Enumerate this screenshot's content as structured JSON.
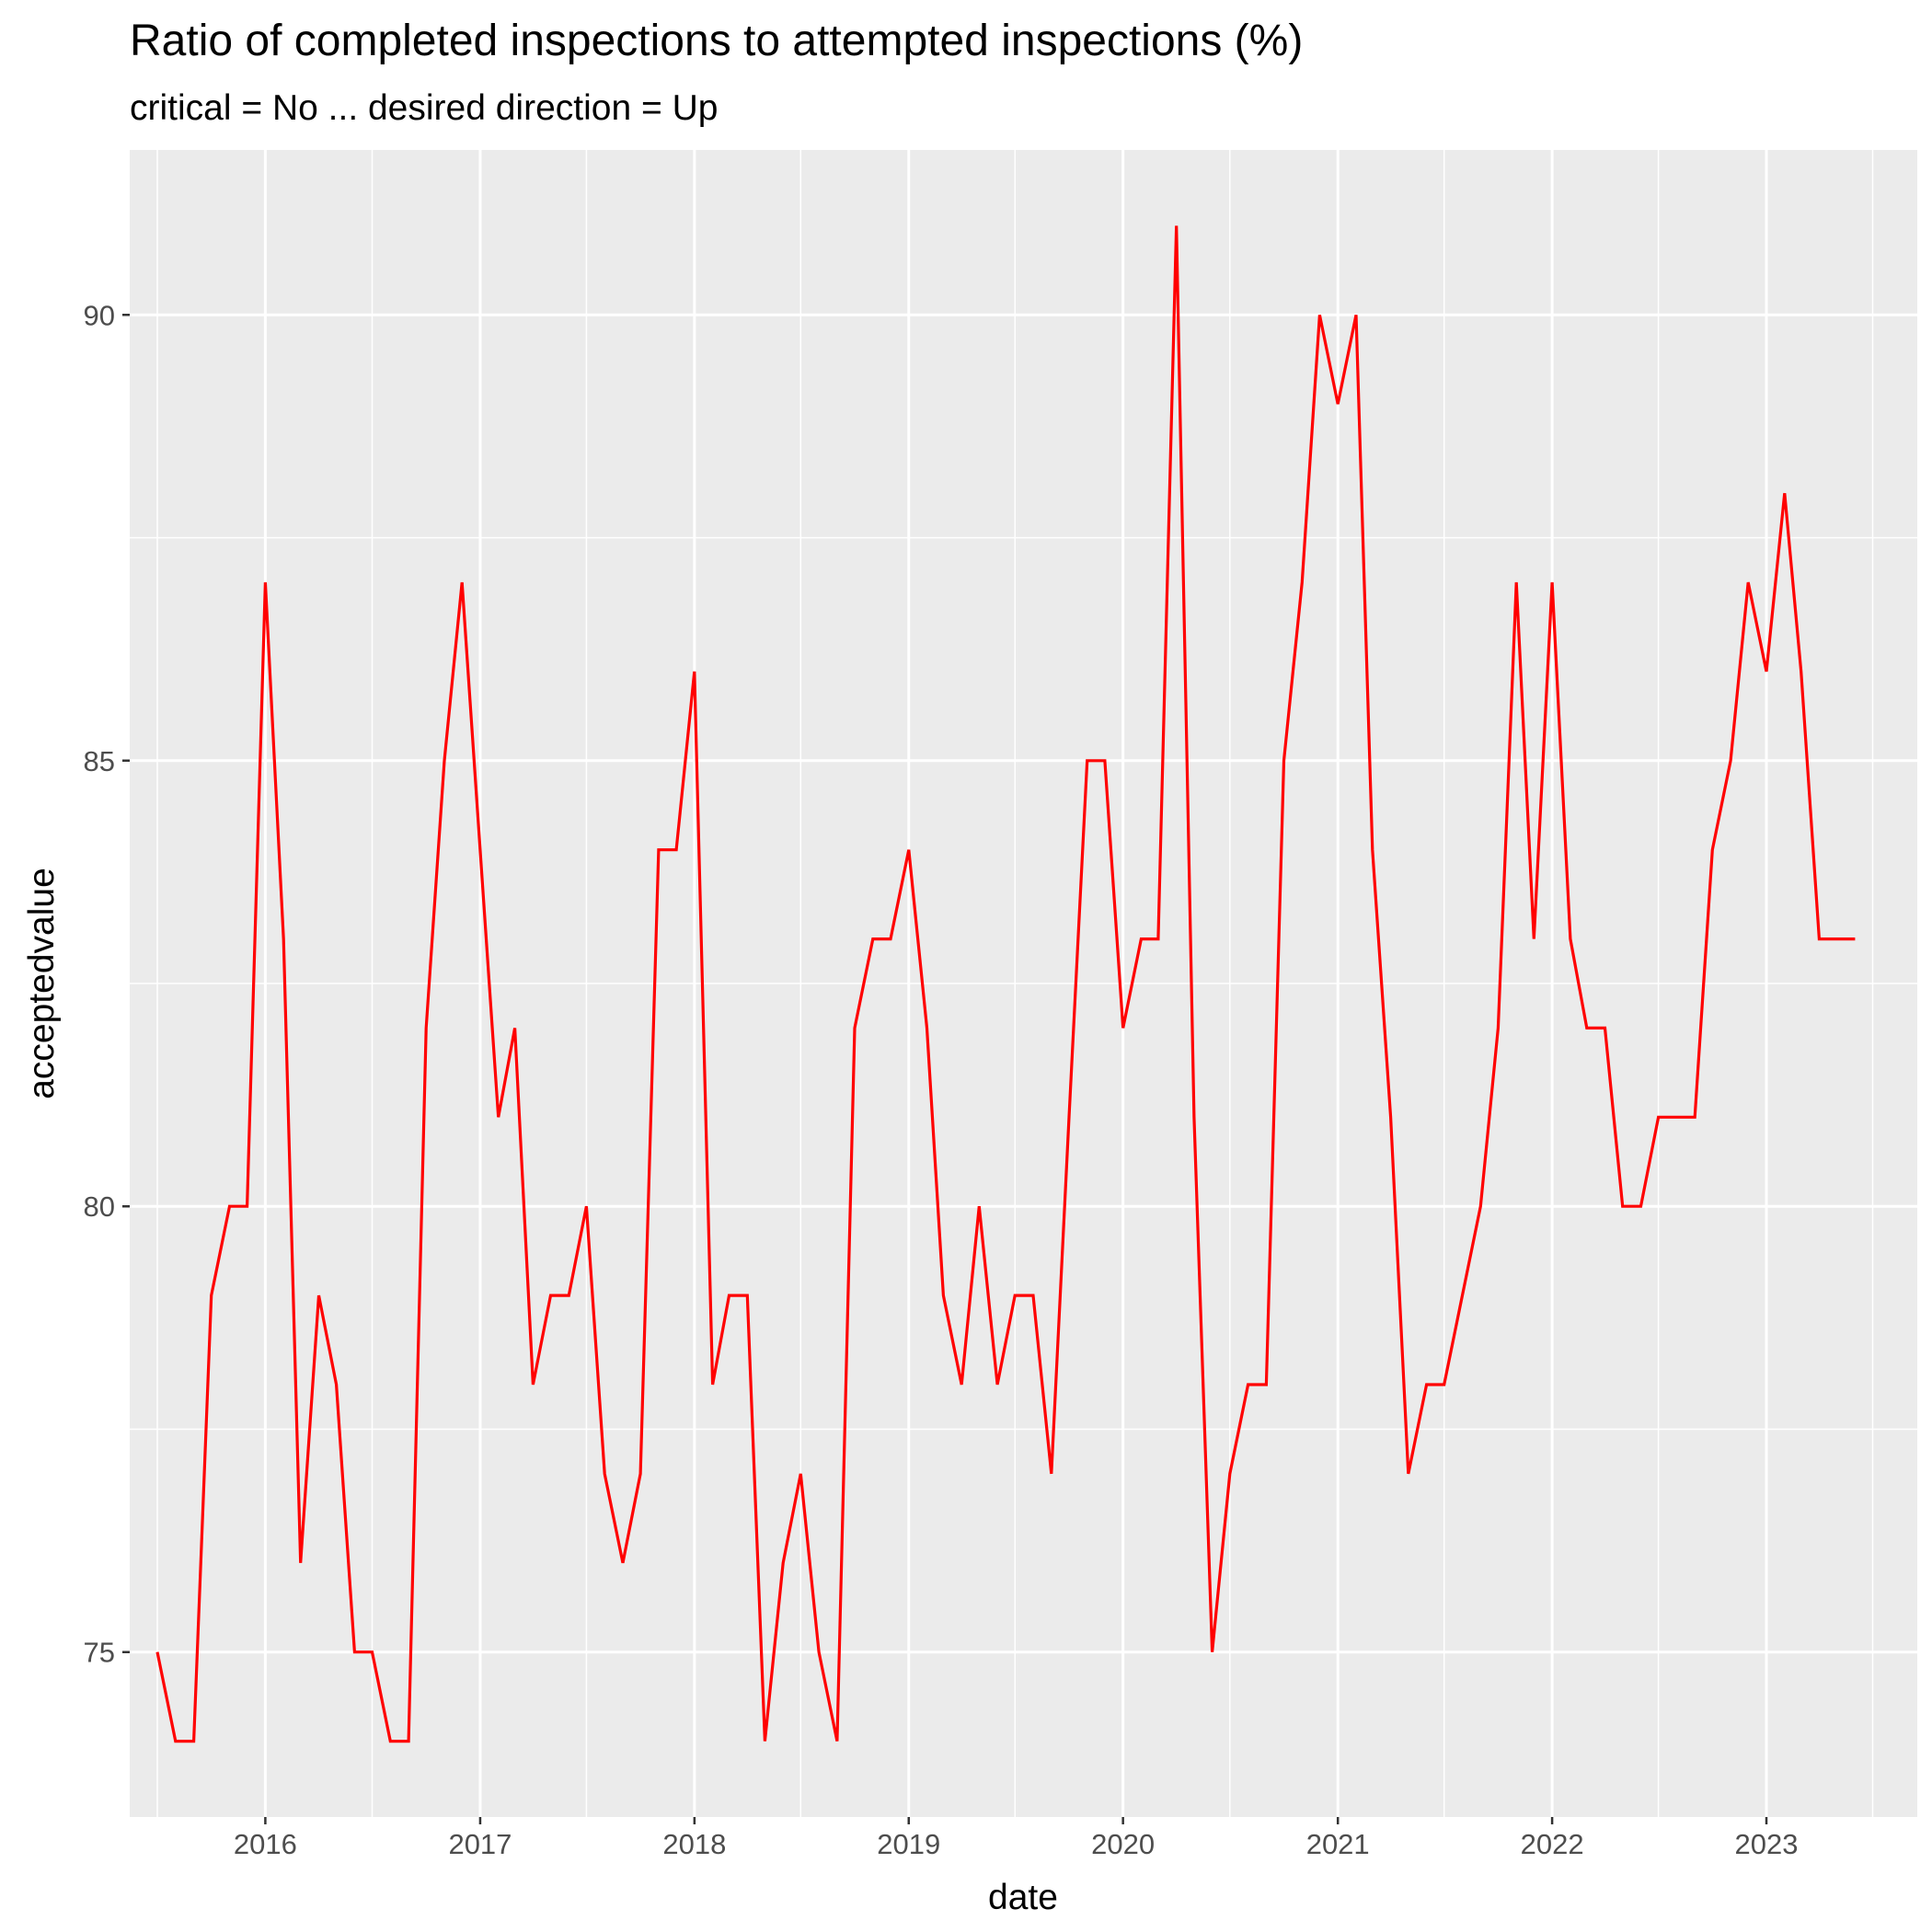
{
  "chart_data": {
    "type": "line",
    "title": "Ratio of completed inspections to attempted inspections (%)",
    "subtitle": "critical = No ... desired direction = Up",
    "xlabel": "date",
    "ylabel": "acceptedvalue",
    "x_tick_labels": [
      "2016",
      "2017",
      "2018",
      "2019",
      "2020",
      "2021",
      "2022",
      "2023"
    ],
    "y_tick_labels": [
      "75",
      "80",
      "85",
      "90"
    ],
    "y_ticks": [
      75,
      80,
      85,
      90
    ],
    "xlim": [
      "2015-05-15",
      "2023-09-15"
    ],
    "ylim": [
      73.15,
      91.85
    ],
    "grid": true,
    "series": [
      {
        "color": "#ff0000",
        "x": [
          "2015-07",
          "2015-08",
          "2015-09",
          "2015-10",
          "2015-11",
          "2015-12",
          "2016-01",
          "2016-02",
          "2016-03",
          "2016-04",
          "2016-05",
          "2016-06",
          "2016-07",
          "2016-08",
          "2016-09",
          "2016-10",
          "2016-11",
          "2016-12",
          "2017-01",
          "2017-02",
          "2017-03",
          "2017-04",
          "2017-05",
          "2017-06",
          "2017-07",
          "2017-08",
          "2017-09",
          "2017-10",
          "2017-11",
          "2017-12",
          "2018-01",
          "2018-02",
          "2018-03",
          "2018-04",
          "2018-05",
          "2018-06",
          "2018-07",
          "2018-08",
          "2018-09",
          "2018-10",
          "2018-11",
          "2018-12",
          "2019-01",
          "2019-02",
          "2019-03",
          "2019-04",
          "2019-05",
          "2019-06",
          "2019-07",
          "2019-08",
          "2019-09",
          "2019-10",
          "2019-11",
          "2019-12",
          "2020-01",
          "2020-02",
          "2020-03",
          "2020-04",
          "2020-05",
          "2020-06",
          "2020-07",
          "2020-08",
          "2020-09",
          "2020-10",
          "2020-11",
          "2020-12",
          "2021-01",
          "2021-02",
          "2021-03",
          "2021-04",
          "2021-05",
          "2021-06",
          "2021-07",
          "2021-08",
          "2021-09",
          "2021-10",
          "2021-11",
          "2021-12",
          "2022-01",
          "2022-02",
          "2022-03",
          "2022-04",
          "2022-05",
          "2022-06",
          "2022-07",
          "2022-08",
          "2022-09",
          "2022-10",
          "2022-11",
          "2022-12",
          "2023-01",
          "2023-02",
          "2023-03",
          "2023-04",
          "2023-05",
          "2023-06"
        ],
        "values": [
          75,
          74,
          74,
          79,
          80,
          80,
          87,
          83,
          76,
          79,
          78,
          75,
          75,
          74,
          74,
          82,
          85,
          87,
          84,
          81,
          82,
          78,
          79,
          79,
          80,
          77,
          76,
          77,
          84,
          84,
          86,
          78,
          79,
          79,
          74,
          76,
          77,
          75,
          74,
          82,
          83,
          83,
          84,
          82,
          79,
          78,
          80,
          78,
          79,
          79,
          77,
          81,
          85,
          85,
          82,
          83,
          83,
          91,
          81,
          75,
          77,
          78,
          78,
          85,
          87,
          90,
          89,
          90,
          84,
          81,
          77,
          78,
          78,
          79,
          80,
          82,
          87,
          83,
          87,
          83,
          82,
          82,
          80,
          80,
          81,
          81,
          81,
          84,
          85,
          87,
          86,
          88,
          86,
          83,
          83,
          83
        ]
      }
    ]
  }
}
